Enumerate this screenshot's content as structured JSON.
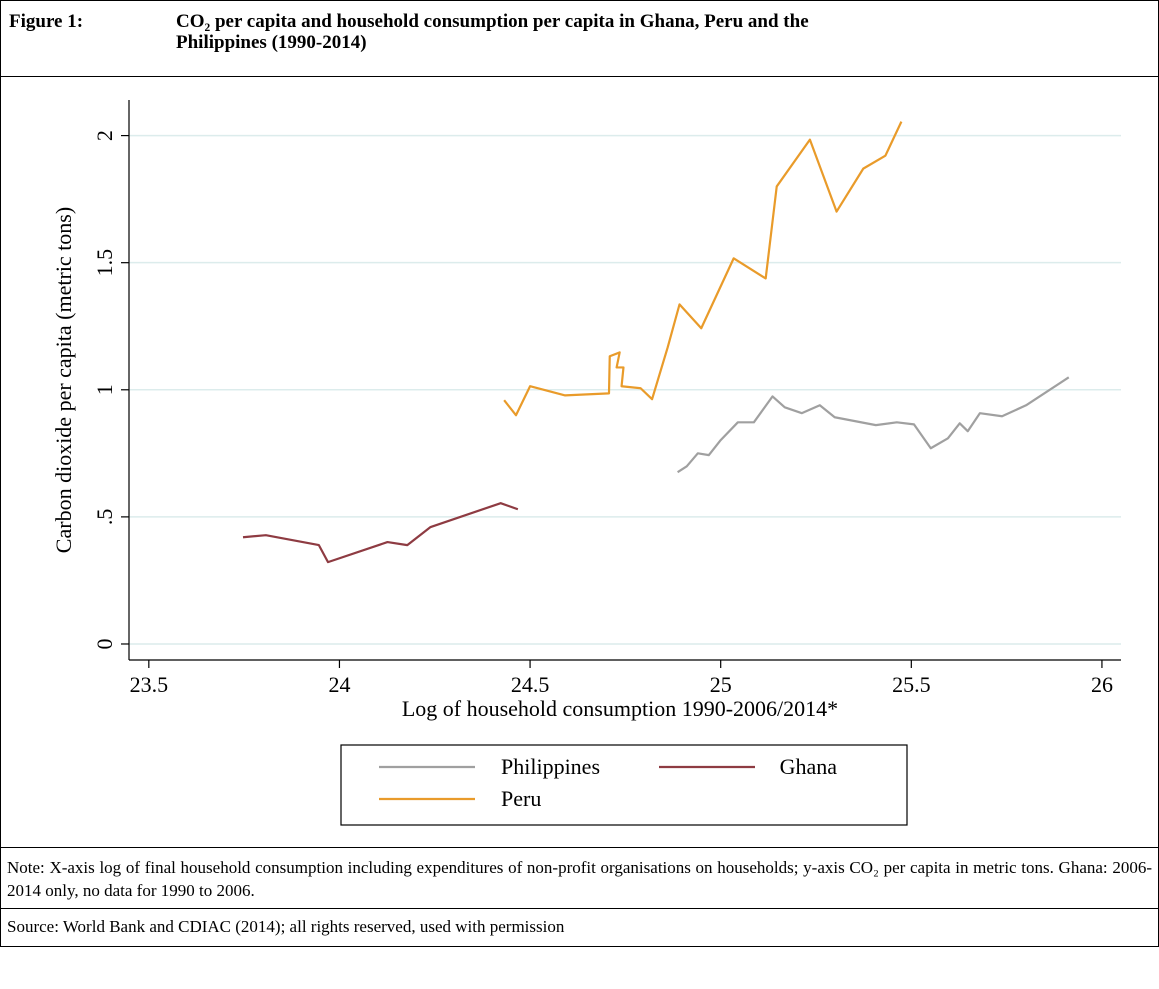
{
  "figure_label": "Figure 1:",
  "chart_data": {
    "type": "line",
    "title": "CO₂ per capita and household consumption per capita in Ghana, Peru and the Philippines (1990-2014)",
    "x_label": "Log of household consumption 1990-2006/2014*",
    "y_label": "Carbon dioxide per capita (metric tons)",
    "xlim": [
      23.448,
      26.05
    ],
    "ylim": [
      -0.063,
      2.14
    ],
    "xticks": [
      23.5,
      24,
      24.5,
      25,
      25.5,
      26
    ],
    "yticks": [
      0,
      {
        "value": 0.5,
        "label": ".5"
      },
      1,
      1.5,
      2
    ],
    "grid": true,
    "series": [
      {
        "name": "Philippines",
        "color": "#a0a0a0",
        "x": [
          24.887,
          24.911,
          24.94,
          24.969,
          25.0,
          25.045,
          25.087,
          25.136,
          25.168,
          25.213,
          25.26,
          25.299,
          25.407,
          25.462,
          25.507,
          25.551,
          25.596,
          25.627,
          25.648,
          25.68,
          25.738,
          25.801,
          25.913
        ],
        "values": [
          0.676,
          0.699,
          0.75,
          0.743,
          0.802,
          0.872,
          0.872,
          0.974,
          0.931,
          0.908,
          0.939,
          0.892,
          0.861,
          0.872,
          0.864,
          0.77,
          0.809,
          0.868,
          0.837,
          0.908,
          0.896,
          0.939,
          1.049
        ]
      },
      {
        "name": "Ghana",
        "color": "#8e3b42",
        "x": [
          23.747,
          23.807,
          23.946,
          23.97,
          24.126,
          24.178,
          24.239,
          24.423,
          24.468
        ],
        "values": [
          0.42,
          0.428,
          0.389,
          0.322,
          0.401,
          0.389,
          0.46,
          0.554,
          0.53
        ]
      },
      {
        "name": "Peru",
        "color": "#e99b2a",
        "x": [
          24.432,
          24.463,
          24.5,
          24.592,
          24.707,
          24.709,
          24.735,
          24.727,
          24.745,
          24.74,
          24.79,
          24.82,
          24.861,
          24.892,
          24.949,
          25.034,
          25.118,
          25.147,
          25.234,
          25.304,
          25.374,
          25.432,
          25.474
        ],
        "values": [
          0.959,
          0.9,
          1.014,
          0.978,
          0.986,
          1.132,
          1.147,
          1.088,
          1.088,
          1.014,
          1.006,
          0.963,
          1.167,
          1.336,
          1.242,
          1.517,
          1.438,
          1.8,
          1.984,
          1.701,
          1.87,
          1.921,
          2.055
        ]
      }
    ]
  },
  "note": "Note: X-axis log of final household consumption including expenditures of non-profit organisations on households; y-axis CO₂ per capita in metric tons. Ghana: 2006-2014 only, no data for 1990 to 2006.",
  "source": "Source: World Bank and CDIAC (2014); all rights reserved, used with permission"
}
